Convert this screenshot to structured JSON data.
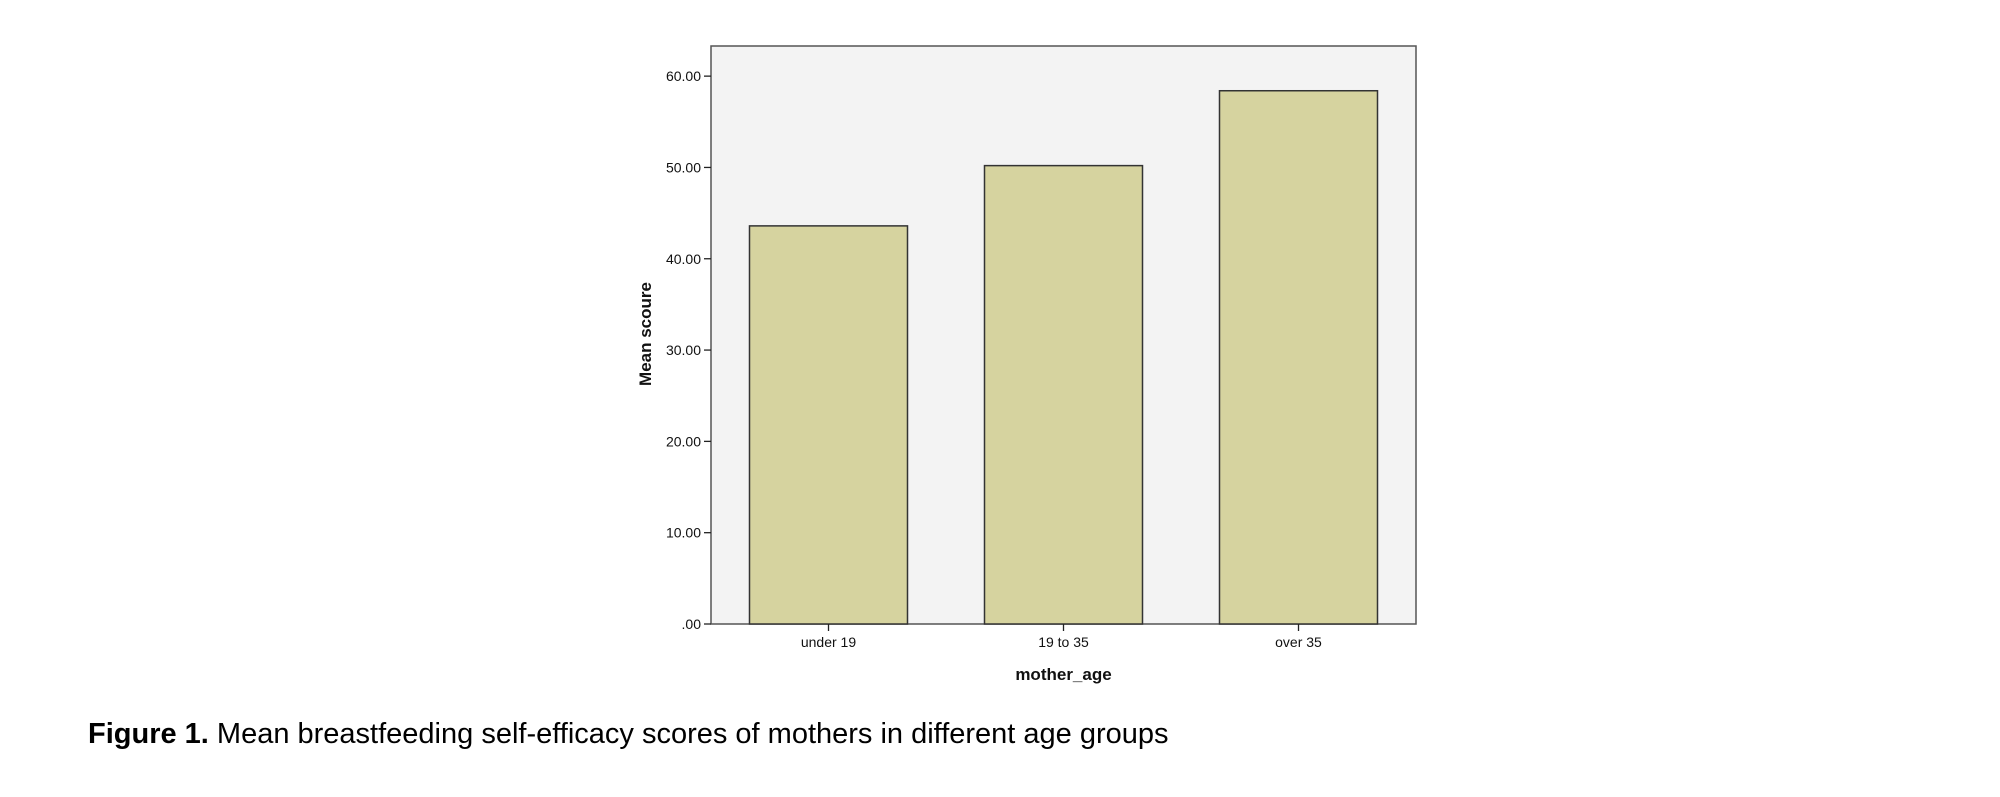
{
  "chart_data": {
    "type": "bar",
    "categories": [
      "under 19",
      "19 to 35",
      "over 35"
    ],
    "values": [
      43.6,
      50.2,
      58.4
    ],
    "y_ticks": [
      0,
      10,
      20,
      30,
      40,
      50,
      60
    ],
    "y_tick_labels": [
      ".00",
      "10.00",
      "20.00",
      "30.00",
      "40.00",
      "50.00",
      "60.00"
    ],
    "ylim": [
      0,
      63.3
    ],
    "xlabel": "mother_age",
    "ylabel": "Mean scoure",
    "title": "",
    "grid": false,
    "colors": {
      "bar_fill": "#d6d39f",
      "bar_stroke": "#333333",
      "plot_bg": "#f3f3f3",
      "frame": "#555555"
    }
  },
  "caption": {
    "label": "Figure 1.",
    "text": " Mean breastfeeding self-efficacy scores of mothers in different age groups"
  }
}
